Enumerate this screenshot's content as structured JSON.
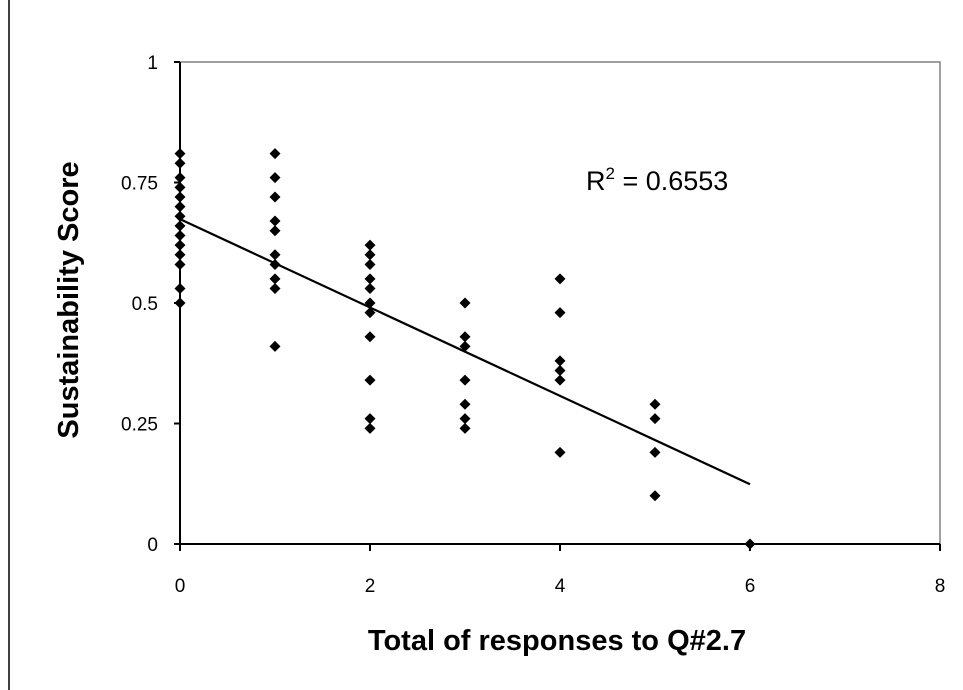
{
  "chart_data": {
    "type": "scatter",
    "xlabel": "Total of responses to Q#2.7",
    "ylabel": "Sustainability Score",
    "xlim": [
      0,
      8
    ],
    "ylim": [
      0,
      1
    ],
    "xticks": [
      0,
      2,
      4,
      6,
      8
    ],
    "yticks": [
      0,
      0.25,
      0.5,
      0.75,
      1
    ],
    "xtick_labels": [
      "0",
      "2",
      "4",
      "6",
      "8"
    ],
    "ytick_labels": [
      "0",
      "0.25",
      "0.5",
      "0.75",
      "1"
    ],
    "grid": false,
    "marker": "diamond",
    "marker_color": "#000000",
    "points": [
      [
        0,
        0.81
      ],
      [
        0,
        0.79
      ],
      [
        0,
        0.76
      ],
      [
        0,
        0.74
      ],
      [
        0,
        0.72
      ],
      [
        0,
        0.7
      ],
      [
        0,
        0.68
      ],
      [
        0,
        0.66
      ],
      [
        0,
        0.64
      ],
      [
        0,
        0.62
      ],
      [
        0,
        0.6
      ],
      [
        0,
        0.58
      ],
      [
        0,
        0.53
      ],
      [
        0,
        0.5
      ],
      [
        1,
        0.81
      ],
      [
        1,
        0.76
      ],
      [
        1,
        0.72
      ],
      [
        1,
        0.67
      ],
      [
        1,
        0.65
      ],
      [
        1,
        0.6
      ],
      [
        1,
        0.58
      ],
      [
        1,
        0.55
      ],
      [
        1,
        0.53
      ],
      [
        1,
        0.41
      ],
      [
        2,
        0.62
      ],
      [
        2,
        0.6
      ],
      [
        2,
        0.58
      ],
      [
        2,
        0.55
      ],
      [
        2,
        0.53
      ],
      [
        2,
        0.5
      ],
      [
        2,
        0.48
      ],
      [
        2,
        0.43
      ],
      [
        2,
        0.34
      ],
      [
        2,
        0.26
      ],
      [
        2,
        0.24
      ],
      [
        3,
        0.5
      ],
      [
        3,
        0.43
      ],
      [
        3,
        0.41
      ],
      [
        3,
        0.34
      ],
      [
        3,
        0.29
      ],
      [
        3,
        0.26
      ],
      [
        3,
        0.24
      ],
      [
        4,
        0.55
      ],
      [
        4,
        0.48
      ],
      [
        4,
        0.38
      ],
      [
        4,
        0.36
      ],
      [
        4,
        0.34
      ],
      [
        4,
        0.19
      ],
      [
        5,
        0.29
      ],
      [
        5,
        0.26
      ],
      [
        5,
        0.19
      ],
      [
        5,
        0.1
      ],
      [
        6,
        0.0
      ]
    ],
    "trendline": {
      "type": "linear",
      "x": [
        0,
        6
      ],
      "y": [
        0.674,
        0.124
      ],
      "color": "#000000"
    },
    "annotation": {
      "base": "R",
      "sup": "2",
      "rest": " = 0.6553"
    }
  }
}
